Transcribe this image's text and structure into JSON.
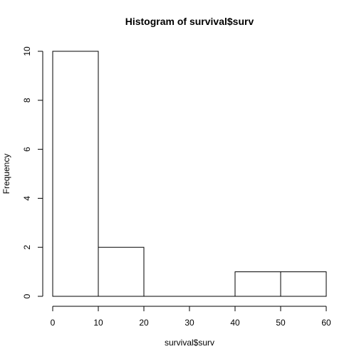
{
  "chart_data": {
    "type": "bar",
    "title": "Histogram of survival$surv",
    "xlabel": "survival$surv",
    "ylabel": "Frequency",
    "bins": [
      {
        "start": 0,
        "end": 10,
        "count": 10
      },
      {
        "start": 10,
        "end": 20,
        "count": 2
      },
      {
        "start": 20,
        "end": 30,
        "count": 0
      },
      {
        "start": 30,
        "end": 40,
        "count": 0
      },
      {
        "start": 40,
        "end": 50,
        "count": 1
      },
      {
        "start": 50,
        "end": 60,
        "count": 1
      }
    ],
    "xlim": [
      0,
      60
    ],
    "ylim": [
      0,
      10
    ],
    "xticks": [
      0,
      10,
      20,
      30,
      40,
      50,
      60
    ],
    "yticks": [
      0,
      2,
      4,
      6,
      8,
      10
    ],
    "grid": false,
    "legend": "none"
  }
}
